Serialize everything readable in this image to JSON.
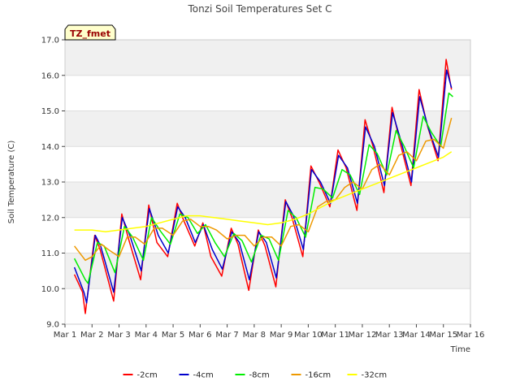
{
  "chart_data": {
    "type": "line",
    "title": "Tonzi Soil Temperatures Set C",
    "xlabel": "Time",
    "ylabel": "Soil Temperature (C)",
    "site_tag": "TZ_fmet",
    "xlim": [
      1,
      16
    ],
    "ylim": [
      9.0,
      17.0
    ],
    "x_ticks": [
      1,
      2,
      3,
      4,
      5,
      6,
      7,
      8,
      9,
      10,
      11,
      12,
      13,
      14,
      15,
      16
    ],
    "x_tick_labels": [
      "Mar 1",
      "Mar 2",
      "Mar 3",
      "Mar 4",
      "Mar 5",
      "Mar 6",
      "Mar 7",
      "Mar 8",
      "Mar 9",
      "Mar 10",
      "Mar 11",
      "Mar 12",
      "Mar 13",
      "Mar 14",
      "Mar 15",
      "Mar 16"
    ],
    "y_ticks": [
      9.0,
      10.0,
      11.0,
      12.0,
      13.0,
      14.0,
      15.0,
      16.0,
      17.0
    ],
    "y_tick_labels": [
      "9.0",
      "10.0",
      "11.0",
      "12.0",
      "13.0",
      "14.0",
      "15.0",
      "16.0",
      "17.0"
    ],
    "grid": true,
    "legend_position": "bottom",
    "series": [
      {
        "name": "-2cm",
        "color": "#ff0000",
        "width": 1.5,
        "x": [
          1.35,
          1.65,
          1.75,
          2.1,
          2.3,
          2.8,
          3.1,
          3.35,
          3.8,
          4.1,
          4.4,
          4.8,
          5.15,
          5.4,
          5.8,
          6.1,
          6.4,
          6.8,
          7.15,
          7.4,
          7.8,
          8.15,
          8.4,
          8.8,
          9.15,
          9.4,
          9.8,
          10.1,
          10.4,
          10.8,
          11.1,
          11.4,
          11.8,
          12.1,
          12.4,
          12.8,
          13.1,
          13.4,
          13.8,
          14.1,
          14.4,
          14.8,
          15.1,
          15.3
        ],
        "y": [
          10.4,
          9.9,
          9.3,
          11.5,
          11.1,
          9.65,
          12.1,
          11.4,
          10.25,
          12.35,
          11.3,
          10.9,
          12.4,
          11.9,
          11.2,
          11.85,
          10.9,
          10.35,
          11.7,
          11.25,
          9.95,
          11.65,
          11.2,
          10.05,
          12.5,
          12.0,
          10.9,
          13.45,
          13.0,
          12.3,
          13.9,
          13.4,
          12.2,
          14.75,
          14.0,
          12.7,
          15.1,
          14.1,
          12.9,
          15.6,
          14.6,
          13.6,
          16.45,
          15.6
        ]
      },
      {
        "name": "-4cm",
        "color": "#0000cc",
        "width": 1.5,
        "x": [
          1.35,
          1.7,
          1.8,
          2.12,
          2.32,
          2.8,
          3.12,
          3.4,
          3.82,
          4.12,
          4.45,
          4.82,
          5.17,
          5.45,
          5.82,
          6.12,
          6.45,
          6.82,
          7.17,
          7.45,
          7.82,
          8.17,
          8.45,
          8.82,
          9.17,
          9.45,
          9.82,
          10.12,
          10.45,
          10.82,
          11.12,
          11.45,
          11.82,
          12.12,
          12.45,
          12.82,
          13.12,
          13.45,
          13.82,
          14.12,
          14.45,
          14.82,
          15.12,
          15.3
        ],
        "y": [
          10.6,
          9.9,
          9.6,
          11.5,
          11.2,
          9.9,
          12.0,
          11.5,
          10.5,
          12.25,
          11.5,
          11.0,
          12.3,
          12.0,
          11.3,
          11.8,
          11.1,
          10.55,
          11.6,
          11.3,
          10.25,
          11.6,
          11.3,
          10.3,
          12.45,
          12.05,
          11.1,
          13.35,
          13.0,
          12.4,
          13.75,
          13.4,
          12.4,
          14.55,
          14.0,
          12.9,
          14.95,
          14.1,
          13.0,
          15.4,
          14.5,
          13.7,
          16.15,
          15.65
        ]
      },
      {
        "name": "-8cm",
        "color": "#00ee00",
        "width": 1.5,
        "x": [
          1.35,
          1.75,
          1.85,
          2.2,
          2.45,
          2.85,
          3.2,
          3.5,
          3.9,
          4.2,
          4.55,
          4.9,
          5.25,
          5.55,
          5.9,
          6.2,
          6.55,
          6.9,
          7.25,
          7.55,
          7.9,
          8.25,
          8.55,
          8.9,
          9.25,
          9.55,
          9.9,
          10.25,
          10.55,
          10.9,
          11.25,
          11.55,
          11.9,
          12.25,
          12.55,
          12.9,
          13.25,
          13.55,
          13.9,
          14.25,
          14.55,
          14.9,
          15.2,
          15.35
        ],
        "y": [
          10.85,
          10.25,
          10.15,
          11.3,
          11.2,
          10.45,
          11.75,
          11.45,
          10.8,
          12.0,
          11.6,
          11.25,
          12.1,
          12.0,
          11.55,
          11.8,
          11.3,
          10.9,
          11.55,
          11.35,
          10.75,
          11.5,
          11.4,
          10.8,
          12.2,
          12.0,
          11.45,
          12.85,
          12.8,
          12.55,
          13.35,
          13.2,
          12.65,
          14.05,
          13.8,
          13.2,
          14.45,
          14.0,
          13.4,
          14.85,
          14.4,
          14.0,
          15.5,
          15.4
        ]
      },
      {
        "name": "-16cm",
        "color": "#ee9900",
        "width": 1.5,
        "x": [
          1.35,
          1.75,
          2.0,
          2.35,
          2.6,
          3.0,
          3.3,
          3.6,
          3.95,
          4.3,
          4.6,
          5.0,
          5.35,
          5.65,
          6.0,
          6.3,
          6.6,
          7.0,
          7.35,
          7.65,
          8.0,
          8.35,
          8.65,
          9.0,
          9.35,
          9.65,
          10.0,
          10.35,
          10.65,
          11.0,
          11.35,
          11.65,
          12.0,
          12.35,
          12.65,
          13.0,
          13.35,
          13.65,
          14.0,
          14.35,
          14.65,
          15.0,
          15.3
        ],
        "y": [
          11.2,
          10.8,
          10.9,
          11.25,
          11.1,
          10.9,
          11.45,
          11.45,
          11.25,
          11.7,
          11.7,
          11.5,
          11.9,
          11.95,
          11.75,
          11.75,
          11.65,
          11.4,
          11.5,
          11.5,
          11.2,
          11.45,
          11.45,
          11.2,
          11.75,
          11.8,
          11.6,
          12.3,
          12.45,
          12.5,
          12.85,
          13.0,
          12.8,
          13.35,
          13.5,
          13.2,
          13.75,
          13.85,
          13.6,
          14.15,
          14.2,
          13.95,
          14.8
        ]
      },
      {
        "name": "-32cm",
        "color": "#ffff00",
        "width": 1.5,
        "x": [
          1.35,
          2.0,
          2.5,
          3.0,
          3.5,
          4.0,
          4.5,
          5.0,
          5.5,
          6.0,
          6.5,
          7.0,
          7.5,
          8.0,
          8.5,
          9.0,
          9.5,
          10.0,
          10.5,
          11.0,
          11.5,
          12.0,
          12.5,
          13.0,
          13.5,
          14.0,
          14.5,
          15.0,
          15.3
        ],
        "y": [
          11.65,
          11.65,
          11.6,
          11.65,
          11.7,
          11.75,
          11.85,
          11.95,
          12.05,
          12.05,
          12.0,
          11.95,
          11.9,
          11.85,
          11.8,
          11.85,
          11.95,
          12.1,
          12.3,
          12.5,
          12.65,
          12.8,
          12.95,
          13.1,
          13.25,
          13.4,
          13.55,
          13.7,
          13.85
        ]
      }
    ]
  }
}
